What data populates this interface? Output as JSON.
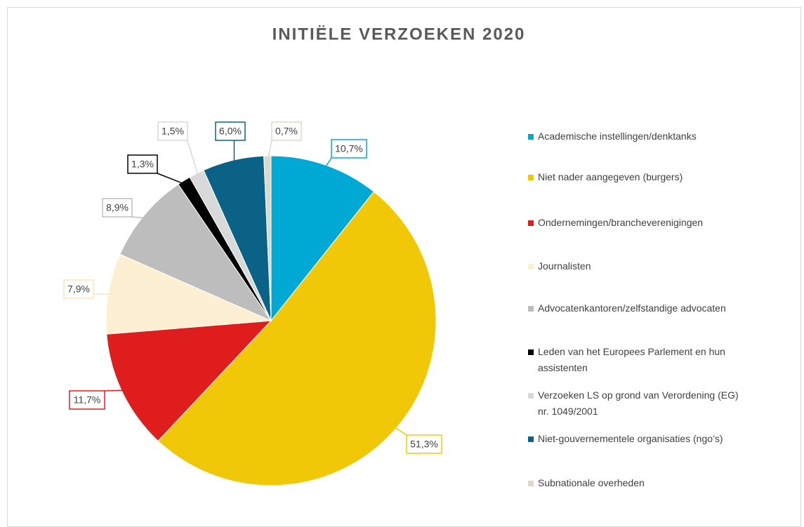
{
  "chart_data": {
    "type": "pie",
    "title": "INITIËLE VERZOEKEN 2020",
    "categories": [
      "Academische instellingen/denktanks",
      "Niet nader aangegeven (burgers)",
      "Ondernemingen/brancheverenigingen",
      "Journalisten",
      "Advocatenkantoren/zelfstandige advocaten",
      "Leden van het Europees Parlement en hun assistenten",
      "Verzoeken LS op grond van Verordening (EG) nr. 1049/2001",
      "Niet-gouvernementele organisaties (ngo’s)",
      "Subnationale overheden"
    ],
    "values": [
      10.7,
      51.3,
      11.7,
      7.9,
      8.9,
      1.3,
      1.5,
      6.0,
      0.7
    ],
    "value_labels": [
      "10,7%",
      "51,3%",
      "11,7%",
      "7,9%",
      "8,9%",
      "1,3%",
      "1,5%",
      "6,0%",
      "0,7%"
    ],
    "colors": [
      "#00a9d4",
      "#f0c808",
      "#e01d1d",
      "#fdefd2",
      "#bdbdbd",
      "#000000",
      "#d9d9d9",
      "#0a6386",
      "#ddd9c6"
    ],
    "legend": "right"
  }
}
